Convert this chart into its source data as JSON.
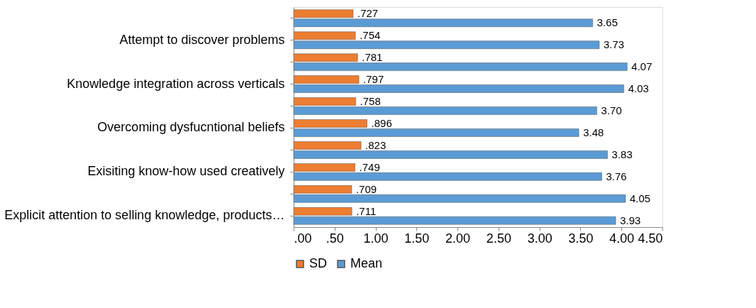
{
  "chart_data": {
    "type": "bar",
    "orientation": "horizontal",
    "categories": [
      null,
      "Attempt to discover problems",
      null,
      "Knowledge integration across verticals",
      null,
      "Overcoming dysfucntional beliefs",
      null,
      "Exisiting know-how used creatively",
      null,
      "Explicit attention to selling knowledge, products…"
    ],
    "series": [
      {
        "name": "SD",
        "color": "#ed7d31",
        "values": [
          0.727,
          0.754,
          0.781,
          0.797,
          0.758,
          0.896,
          0.823,
          0.749,
          0.709,
          0.711
        ],
        "value_labels": [
          ".727",
          ".754",
          ".781",
          ".797",
          ".758",
          ".896",
          ".823",
          ".749",
          ".709",
          ".711"
        ]
      },
      {
        "name": "Mean",
        "color": "#5b9bd5",
        "values": [
          3.65,
          3.73,
          4.07,
          4.03,
          3.7,
          3.48,
          3.83,
          3.76,
          4.05,
          3.93
        ],
        "value_labels": [
          "3.65",
          "3.73",
          "4.07",
          "4.03",
          "3.70",
          "3.48",
          "3.83",
          "3.76",
          "4.05",
          "3.93"
        ]
      }
    ],
    "xlim": [
      0,
      4.5
    ],
    "xticks": [
      {
        "value": 0,
        "label": ".00"
      },
      {
        "value": 0.5,
        "label": ".50"
      },
      {
        "value": 1,
        "label": "1.00"
      },
      {
        "value": 1.5,
        "label": "1.50"
      },
      {
        "value": 2,
        "label": "2.00"
      },
      {
        "value": 2.5,
        "label": "2.50"
      },
      {
        "value": 3,
        "label": "3.00"
      },
      {
        "value": 3.5,
        "label": "3.50"
      },
      {
        "value": 4,
        "label": "4.00"
      },
      {
        "value": 4.5,
        "label": "4.50"
      }
    ],
    "legend": "bottom",
    "grid": false
  }
}
